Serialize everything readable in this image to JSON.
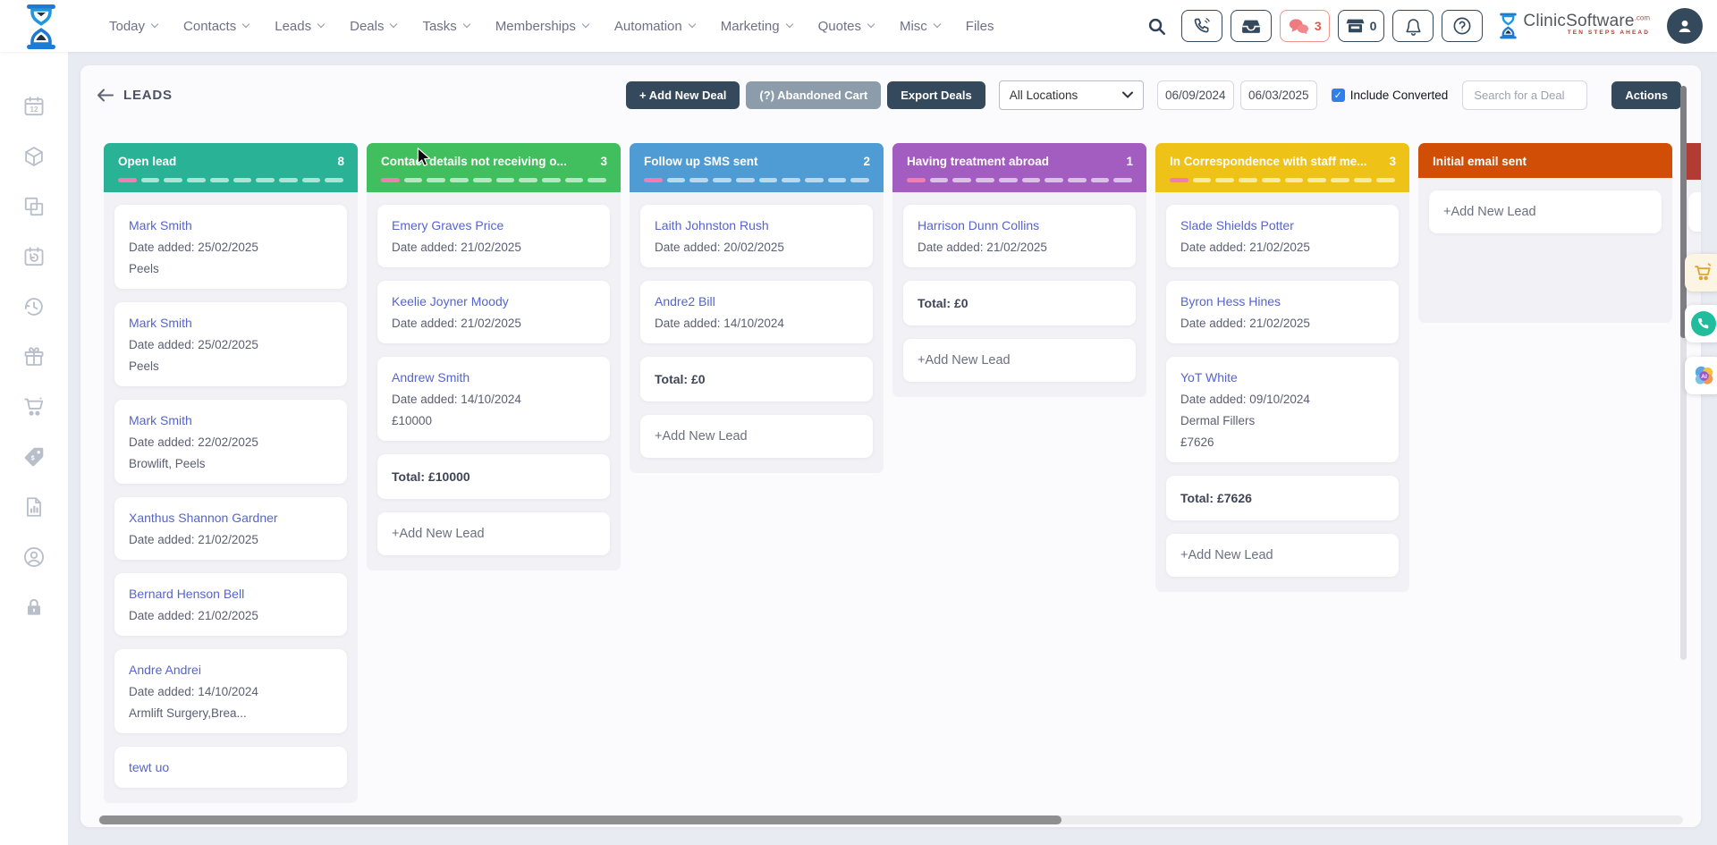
{
  "nav": {
    "items": [
      {
        "label": "Today",
        "dropdown": true
      },
      {
        "label": "Contacts",
        "dropdown": true
      },
      {
        "label": "Leads",
        "dropdown": true
      },
      {
        "label": "Deals",
        "dropdown": true
      },
      {
        "label": "Tasks",
        "dropdown": true
      },
      {
        "label": "Memberships",
        "dropdown": true
      },
      {
        "label": "Automation",
        "dropdown": true
      },
      {
        "label": "Marketing",
        "dropdown": true
      },
      {
        "label": "Quotes",
        "dropdown": true
      },
      {
        "label": "Misc",
        "dropdown": true
      },
      {
        "label": "Files",
        "dropdown": false
      }
    ]
  },
  "topbar": {
    "chat_badge": "3",
    "store_badge": "0",
    "brand": {
      "name": "ClinicSoftware",
      "suffix": ".com",
      "tagline": "TEN STEPS AHEAD"
    }
  },
  "toolbar": {
    "title": "LEADS",
    "buttons": {
      "add_new_deal": "+ Add New Deal",
      "abandoned_cart": "(?) Abandoned Cart",
      "export_deals": "Export Deals",
      "actions": "Actions"
    },
    "location_select": {
      "value": "All Locations"
    },
    "date_from": "06/09/2024",
    "date_to": "06/03/2025",
    "include_converted": {
      "label": "Include Converted",
      "checked": true
    },
    "search_placeholder": "Search for a Deal"
  },
  "board": {
    "columns": [
      {
        "title": "Open lead",
        "count": "8",
        "color": "#29b295",
        "dashes": true,
        "cards": [
          {
            "name": "Mark Smith",
            "date": "Date added: 25/02/2025",
            "extra": "Peels"
          },
          {
            "name": "Mark Smith",
            "date": "Date added: 25/02/2025",
            "extra": "Peels"
          },
          {
            "name": "Mark Smith",
            "date": "Date added: 22/02/2025",
            "extra": "Browlift, Peels"
          },
          {
            "name": "Xanthus Shannon Gardner",
            "date": "Date added: 21/02/2025"
          },
          {
            "name": "Bernard Henson Bell",
            "date": "Date added: 21/02/2025"
          },
          {
            "name": "Andre Andrei",
            "date": "Date added: 14/10/2024",
            "extra": "Armlift Surgery,Brea..."
          },
          {
            "name": "tewt uo"
          }
        ]
      },
      {
        "title": "Contact details not receiving o...",
        "count": "3",
        "color": "#41bf5e",
        "dashes": true,
        "cards": [
          {
            "name": "Emery Graves Price",
            "date": "Date added: 21/02/2025"
          },
          {
            "name": "Keelie Joyner Moody",
            "date": "Date added: 21/02/2025"
          },
          {
            "name": "Andrew Smith",
            "date": "Date added: 14/10/2024",
            "extra": "£10000"
          }
        ],
        "total": "Total: £10000",
        "add_label": "+Add New Lead"
      },
      {
        "title": "Follow up SMS sent",
        "count": "2",
        "color": "#4e9cd3",
        "dashes": true,
        "cards": [
          {
            "name": "Laith Johnston Rush",
            "date": "Date added: 20/02/2025"
          },
          {
            "name": "Andre2 Bill",
            "date": "Date added: 14/10/2024"
          }
        ],
        "total": "Total: £0",
        "add_label": "+Add New Lead"
      },
      {
        "title": "Having treatment abroad",
        "count": "1",
        "color": "#a35cc0",
        "dashes": true,
        "cards": [
          {
            "name": "Harrison Dunn Collins",
            "date": "Date added: 21/02/2025"
          }
        ],
        "total": "Total: £0",
        "add_label": "+Add New Lead"
      },
      {
        "title": "In Correspondence with staff me...",
        "count": "3",
        "color": "#eec217",
        "dashes": true,
        "cards": [
          {
            "name": "Slade Shields Potter",
            "date": "Date added: 21/02/2025"
          },
          {
            "name": "Byron Hess Hines",
            "date": "Date added: 21/02/2025"
          },
          {
            "name": "YoT White",
            "date": "Date added: 09/10/2024",
            "extra": "Dermal Fillers",
            "amount": "£7626"
          }
        ],
        "total": "Total: £7626",
        "add_label": "+Add New Lead"
      },
      {
        "title": "Initial email sent",
        "count": "",
        "color": "#d14e07",
        "dashes": false,
        "cards": [],
        "add_label": "+Add New Lead"
      },
      {
        "title": "",
        "count": "",
        "color": "#b23b33",
        "dashes": false,
        "peek": true,
        "cards": []
      }
    ]
  },
  "sidebar": {
    "icons": [
      "calendar-icon",
      "package-icon",
      "copy-icon",
      "schedule-icon",
      "history-icon",
      "gift-icon",
      "cart-icon",
      "price-tag-icon",
      "report-icon",
      "account-icon",
      "lock-icon"
    ]
  },
  "floating": {
    "buttons": [
      "cart-quick-button",
      "phone-quick-button",
      "ai-assistant-button"
    ]
  }
}
